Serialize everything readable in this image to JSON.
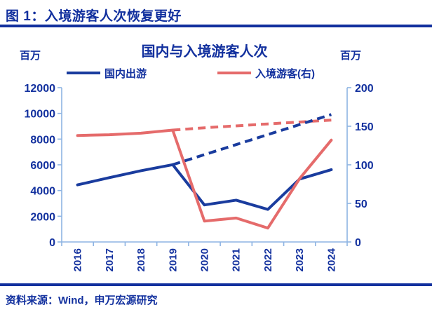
{
  "page": {
    "title": "图 1：入境游客人次恢复更好",
    "source": "资料来源：Wind，申万宏源研究"
  },
  "colors": {
    "navy_text": "#12309E",
    "domestic_line": "#1A3C9E",
    "inbound_line": "#E56B6B",
    "axis": "#8EB4E3",
    "background": "#FFFFFF"
  },
  "chart_data": {
    "type": "line",
    "title": "国内与入境游客人次",
    "left_axis": {
      "unit": "百万",
      "min": 0,
      "max": 12000,
      "ticks": [
        0,
        2000,
        4000,
        6000,
        8000,
        10000,
        12000
      ]
    },
    "right_axis": {
      "unit": "百万",
      "min": 0,
      "max": 200,
      "ticks": [
        0,
        50,
        100,
        150,
        200
      ]
    },
    "categories": [
      "2016",
      "2017",
      "2018",
      "2019",
      "2020",
      "2021",
      "2022",
      "2023",
      "2024"
    ],
    "grid": false,
    "legend_position": "top",
    "legend": [
      {
        "label": "国内出游",
        "color": "#1A3C9E"
      },
      {
        "label": "入境游客(右)",
        "color": "#E56B6B"
      }
    ],
    "series": [
      {
        "name": "国内出游",
        "axis": "left",
        "line_style": "solid",
        "color": "#1A3C9E",
        "values": [
          4440,
          5000,
          5540,
          6010,
          2880,
          3250,
          2530,
          4890,
          5620
        ]
      },
      {
        "name": "入境游客(右)",
        "axis": "right",
        "line_style": "solid",
        "color": "#E56B6B",
        "values": [
          138,
          139,
          141,
          145,
          27,
          31,
          18,
          82,
          132
        ]
      },
      {
        "name": "入境游客-疫情前趋势外推(虚线)",
        "axis": "right",
        "line_style": "dashed",
        "color": "#E56B6B",
        "values": [
          null,
          null,
          null,
          145,
          148,
          150.5,
          153,
          155.5,
          158
        ]
      },
      {
        "name": "国内出游-疫情前趋势外推(虚线)",
        "axis": "left",
        "line_style": "dashed",
        "color": "#1A3C9E",
        "values": [
          null,
          null,
          null,
          6010,
          6790,
          7570,
          8350,
          9130,
          9910
        ]
      }
    ]
  }
}
